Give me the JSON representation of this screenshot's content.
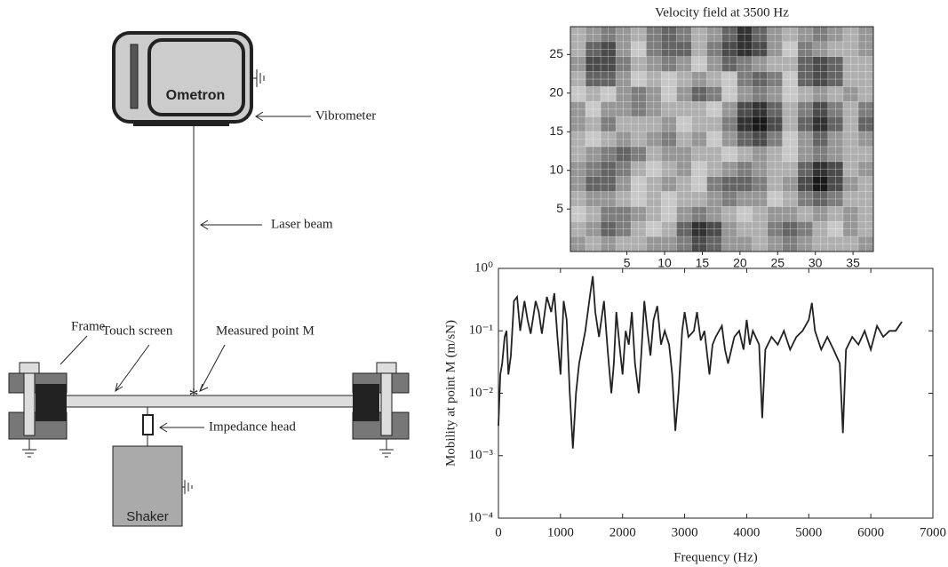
{
  "diagram": {
    "device": "Ometron",
    "vibrometer": "Vibrometer",
    "laser": "Laser beam",
    "frame": "Frame",
    "touch": "Touch screen",
    "point": "Measured point M",
    "impedance": "Impedance head",
    "shaker": "Shaker"
  },
  "chart_data": [
    {
      "type": "heatmap",
      "title": "Velocity field at 3500 Hz",
      "xlim": [
        -2.5,
        37.7
      ],
      "ylim": [
        -0.5,
        28.6
      ],
      "xticks": [
        5,
        10,
        15,
        20,
        25,
        30,
        35
      ],
      "yticks": [
        5,
        10,
        15,
        20,
        25
      ],
      "values": [
        [
          3,
          4,
          5,
          4,
          3,
          5,
          6,
          5,
          3,
          4,
          6,
          8,
          6,
          4,
          3,
          4,
          5,
          4,
          3,
          4
        ],
        [
          3,
          6,
          7,
          4,
          2,
          5,
          6,
          6,
          3,
          5,
          7,
          8,
          7,
          4,
          2,
          5,
          4,
          3,
          3,
          4
        ],
        [
          4,
          7,
          7,
          5,
          3,
          4,
          5,
          4,
          2,
          4,
          6,
          5,
          4,
          3,
          3,
          6,
          7,
          6,
          3,
          3
        ],
        [
          3,
          6,
          6,
          4,
          2,
          3,
          2,
          3,
          4,
          3,
          2,
          5,
          6,
          5,
          2,
          6,
          7,
          6,
          3,
          3
        ],
        [
          2,
          3,
          2,
          4,
          5,
          4,
          2,
          4,
          6,
          5,
          2,
          4,
          5,
          4,
          2,
          3,
          4,
          3,
          4,
          3
        ],
        [
          4,
          2,
          4,
          4,
          5,
          4,
          3,
          3,
          3,
          2,
          4,
          7,
          8,
          6,
          3,
          5,
          7,
          5,
          3,
          5
        ],
        [
          4,
          3,
          5,
          3,
          3,
          3,
          4,
          2,
          3,
          3,
          5,
          8,
          9,
          7,
          3,
          6,
          8,
          6,
          3,
          6
        ],
        [
          3,
          2,
          3,
          4,
          3,
          4,
          5,
          3,
          4,
          2,
          4,
          6,
          7,
          5,
          2,
          4,
          6,
          4,
          3,
          4
        ],
        [
          3,
          4,
          5,
          6,
          5,
          3,
          4,
          4,
          3,
          3,
          2,
          3,
          4,
          3,
          2,
          4,
          5,
          4,
          3,
          3
        ],
        [
          4,
          5,
          6,
          5,
          3,
          2,
          3,
          4,
          2,
          3,
          4,
          5,
          4,
          3,
          3,
          6,
          8,
          7,
          3,
          4
        ],
        [
          4,
          6,
          6,
          4,
          2,
          3,
          4,
          3,
          2,
          5,
          6,
          6,
          5,
          3,
          4,
          7,
          9,
          7,
          4,
          3
        ],
        [
          3,
          4,
          4,
          3,
          2,
          3,
          2,
          3,
          3,
          4,
          5,
          4,
          4,
          2,
          3,
          5,
          6,
          5,
          3,
          3
        ],
        [
          2,
          3,
          5,
          5,
          4,
          3,
          2,
          4,
          5,
          4,
          3,
          2,
          3,
          4,
          4,
          3,
          4,
          3,
          4,
          3
        ],
        [
          3,
          4,
          6,
          5,
          3,
          2,
          3,
          6,
          8,
          7,
          4,
          3,
          3,
          5,
          6,
          5,
          3,
          2,
          4,
          3
        ],
        [
          4,
          3,
          4,
          3,
          3,
          4,
          4,
          5,
          7,
          6,
          4,
          4,
          3,
          4,
          5,
          4,
          3,
          3,
          3,
          4
        ]
      ]
    },
    {
      "type": "line",
      "x_label": "Frequency (Hz)",
      "y_label": "Mobility at point M (m/sN)",
      "log_y": true,
      "color": "#222222",
      "xlim": [
        0,
        7000
      ],
      "xticks": [
        0,
        1000,
        2000,
        3000,
        4000,
        5000,
        6000,
        7000
      ],
      "ylim": [
        0.0001,
        1
      ],
      "yticks": [
        {
          "value": 0.0001,
          "label": "10⁻⁴"
        },
        {
          "value": 0.001,
          "label": "10⁻³"
        },
        {
          "value": 0.01,
          "label": "10⁻²"
        },
        {
          "value": 0.1,
          "label": "10⁻¹"
        },
        {
          "value": 1,
          "label": "10⁰"
        }
      ],
      "x": [
        0,
        30,
        60,
        100,
        130,
        160,
        200,
        250,
        300,
        350,
        420,
        470,
        520,
        600,
        650,
        700,
        780,
        850,
        900,
        950,
        1000,
        1050,
        1100,
        1150,
        1200,
        1250,
        1300,
        1400,
        1480,
        1520,
        1560,
        1620,
        1700,
        1760,
        1820,
        1860,
        1900,
        1950,
        2000,
        2050,
        2100,
        2150,
        2200,
        2260,
        2300,
        2350,
        2400,
        2450,
        2500,
        2560,
        2620,
        2680,
        2750,
        2800,
        2850,
        2900,
        2960,
        3000,
        3060,
        3150,
        3200,
        3260,
        3320,
        3400,
        3450,
        3500,
        3600,
        3650,
        3700,
        3800,
        3880,
        3950,
        4000,
        4050,
        4100,
        4200,
        4250,
        4300,
        4400,
        4500,
        4600,
        4700,
        4800,
        4900,
        5000,
        5050,
        5100,
        5200,
        5300,
        5400,
        5500,
        5550,
        5600,
        5700,
        5800,
        5900,
        6000,
        6100,
        6200,
        6300,
        6400,
        6500
      ],
      "values": [
        0.003,
        0.02,
        0.03,
        0.08,
        0.1,
        0.02,
        0.04,
        0.3,
        0.35,
        0.1,
        0.3,
        0.15,
        0.09,
        0.3,
        0.2,
        0.09,
        0.35,
        0.2,
        0.4,
        0.08,
        0.02,
        0.3,
        0.15,
        0.01,
        0.0013,
        0.01,
        0.03,
        0.1,
        0.4,
        0.75,
        0.2,
        0.08,
        0.3,
        0.05,
        0.01,
        0.03,
        0.2,
        0.06,
        0.02,
        0.1,
        0.06,
        0.2,
        0.03,
        0.01,
        0.04,
        0.3,
        0.1,
        0.04,
        0.15,
        0.25,
        0.06,
        0.1,
        0.06,
        0.02,
        0.0025,
        0.01,
        0.1,
        0.2,
        0.08,
        0.1,
        0.2,
        0.07,
        0.1,
        0.02,
        0.06,
        0.08,
        0.12,
        0.05,
        0.03,
        0.08,
        0.1,
        0.05,
        0.15,
        0.06,
        0.1,
        0.06,
        0.004,
        0.05,
        0.08,
        0.06,
        0.1,
        0.05,
        0.08,
        0.1,
        0.15,
        0.28,
        0.1,
        0.05,
        0.08,
        0.05,
        0.03,
        0.0023,
        0.05,
        0.08,
        0.06,
        0.1,
        0.05,
        0.12,
        0.08,
        0.1,
        0.1,
        0.14
      ]
    }
  ]
}
